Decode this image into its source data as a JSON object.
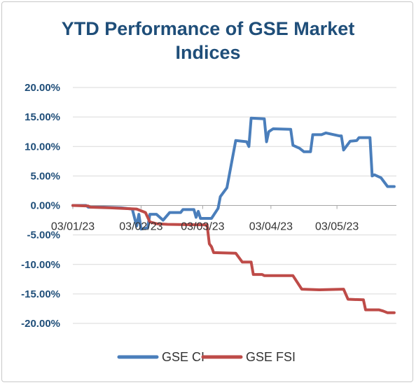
{
  "chart_data": {
    "type": "line",
    "title_lines": [
      "YTD Performance of GSE Market",
      "Indices"
    ],
    "xlabel": "",
    "ylabel": "",
    "ylim": [
      -20,
      20
    ],
    "y_ticks": [
      "20.00%",
      "15.00%",
      "10.00%",
      "5.00%",
      "0.00%",
      "-5.00%",
      "-10.00%",
      "-15.00%",
      "-20.00%"
    ],
    "y_tick_values": [
      20,
      15,
      10,
      5,
      0,
      -5,
      -10,
      -15,
      -20
    ],
    "x_ticks": [
      "03/01/23",
      "03/02/23",
      "03/03/23",
      "03/04/23",
      "03/05/23"
    ],
    "x_tick_dates": [
      "2023-01-03",
      "2023-02-03",
      "2023-03-03",
      "2023-04-03",
      "2023-05-03"
    ],
    "x_end": "2023-05-30",
    "grid": true,
    "legend_position": "bottom",
    "series": [
      {
        "name": "GSE CI",
        "color": "#4a7ebb",
        "points": [
          [
            "2023-01-03",
            0.0
          ],
          [
            "2023-01-09",
            0.0
          ],
          [
            "2023-01-10",
            -0.3
          ],
          [
            "2023-01-17",
            -0.3
          ],
          [
            "2023-01-25",
            -0.4
          ],
          [
            "2023-01-30",
            -0.6
          ],
          [
            "2023-02-01",
            -3.5
          ],
          [
            "2023-02-02",
            -1.5
          ],
          [
            "2023-02-03",
            -4.0
          ],
          [
            "2023-02-06",
            -3.8
          ],
          [
            "2023-02-07",
            -1.5
          ],
          [
            "2023-02-10",
            -1.5
          ],
          [
            "2023-02-13",
            -2.5
          ],
          [
            "2023-02-16",
            -1.2
          ],
          [
            "2023-02-21",
            -1.2
          ],
          [
            "2023-02-22",
            -0.7
          ],
          [
            "2023-02-27",
            -0.7
          ],
          [
            "2023-02-28",
            -2.0
          ],
          [
            "2023-03-01",
            -1.0
          ],
          [
            "2023-03-02",
            -2.2
          ],
          [
            "2023-03-07",
            -2.2
          ],
          [
            "2023-03-10",
            -0.5
          ],
          [
            "2023-03-11",
            1.5
          ],
          [
            "2023-03-14",
            3.0
          ],
          [
            "2023-03-16",
            7.0
          ],
          [
            "2023-03-18",
            11.0
          ],
          [
            "2023-03-23",
            10.8
          ],
          [
            "2023-03-24",
            10.0
          ],
          [
            "2023-03-25",
            14.8
          ],
          [
            "2023-03-31",
            14.7
          ],
          [
            "2023-04-01",
            10.8
          ],
          [
            "2023-04-02",
            12.5
          ],
          [
            "2023-04-04",
            13.0
          ],
          [
            "2023-04-12",
            12.9
          ],
          [
            "2023-04-13",
            10.2
          ],
          [
            "2023-04-16",
            9.7
          ],
          [
            "2023-04-18",
            9.1
          ],
          [
            "2023-04-21",
            9.1
          ],
          [
            "2023-04-22",
            12.0
          ],
          [
            "2023-04-26",
            12.0
          ],
          [
            "2023-04-28",
            12.3
          ],
          [
            "2023-05-04",
            11.8
          ],
          [
            "2023-05-05",
            11.8
          ],
          [
            "2023-05-06",
            9.4
          ],
          [
            "2023-05-09",
            10.9
          ],
          [
            "2023-05-12",
            11.0
          ],
          [
            "2023-05-13",
            11.5
          ],
          [
            "2023-05-18",
            11.5
          ],
          [
            "2023-05-19",
            5.0
          ],
          [
            "2023-05-20",
            5.2
          ],
          [
            "2023-05-23",
            4.7
          ],
          [
            "2023-05-26",
            3.2
          ],
          [
            "2023-05-29",
            3.2
          ]
        ]
      },
      {
        "name": "GSE FSI",
        "color": "#be4b48",
        "points": [
          [
            "2023-01-03",
            0.0
          ],
          [
            "2023-01-10",
            -0.1
          ],
          [
            "2023-01-11",
            -0.3
          ],
          [
            "2023-01-20",
            -0.4
          ],
          [
            "2023-02-01",
            -0.6
          ],
          [
            "2023-02-05",
            -1.2
          ],
          [
            "2023-02-07",
            -2.8
          ],
          [
            "2023-02-10",
            -3.1
          ],
          [
            "2023-02-15",
            -3.2
          ],
          [
            "2023-03-05",
            -3.3
          ],
          [
            "2023-03-06",
            -6.5
          ],
          [
            "2023-03-07",
            -7.0
          ],
          [
            "2023-03-08",
            -8.0
          ],
          [
            "2023-03-18",
            -8.1
          ],
          [
            "2023-03-21",
            -9.6
          ],
          [
            "2023-03-25",
            -9.6
          ],
          [
            "2023-03-26",
            -11.7
          ],
          [
            "2023-03-30",
            -11.7
          ],
          [
            "2023-03-31",
            -11.9
          ],
          [
            "2023-04-13",
            -11.9
          ],
          [
            "2023-04-17",
            -14.2
          ],
          [
            "2023-04-25",
            -14.3
          ],
          [
            "2023-05-06",
            -14.2
          ],
          [
            "2023-05-08",
            -15.9
          ],
          [
            "2023-05-15",
            -16.0
          ],
          [
            "2023-05-16",
            -17.7
          ],
          [
            "2023-05-22",
            -17.7
          ],
          [
            "2023-05-24",
            -17.9
          ],
          [
            "2023-05-26",
            -18.2
          ],
          [
            "2023-05-29",
            -18.2
          ]
        ]
      }
    ]
  }
}
